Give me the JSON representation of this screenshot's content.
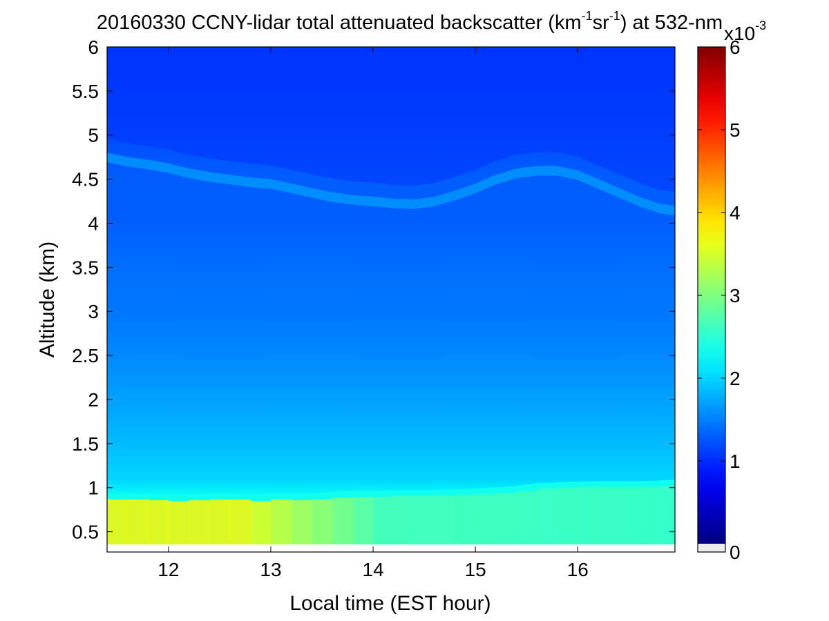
{
  "chart_data": {
    "type": "heatmap",
    "title_parts": {
      "main": "20160330 CCNY-lidar total attenuated backscatter (km",
      "sup1": "-1",
      "mid": "sr",
      "sup2": "-1",
      "tail": ") at 532-nm"
    },
    "xlabel": "Local time (EST hour)",
    "ylabel": "Altitude (km)",
    "xlim": [
      11.4,
      16.95
    ],
    "ylim": [
      0.27,
      6.0
    ],
    "x_ticks": [
      12,
      13,
      14,
      15,
      16
    ],
    "x_tick_labels": [
      "12",
      "13",
      "14",
      "15",
      "16"
    ],
    "y_ticks": [
      0.5,
      1,
      1.5,
      2,
      2.5,
      3,
      3.5,
      4,
      4.5,
      5,
      5.5,
      6
    ],
    "y_tick_labels": [
      "0.5",
      "1",
      "1.5",
      "2",
      "2.5",
      "3",
      "3.5",
      "4",
      "4.5",
      "5",
      "5.5",
      "6"
    ],
    "data_floor_km": 0.3,
    "colorbar": {
      "colormap": "jet",
      "clim": [
        0,
        6
      ],
      "ticks": [
        0,
        1,
        2,
        3,
        4,
        5,
        6
      ],
      "tick_labels": [
        "0",
        "1",
        "2",
        "3",
        "4",
        "5",
        "6"
      ],
      "multiplier_base": "x10",
      "multiplier_exp": "-3"
    },
    "time_samples": [
      11.4,
      11.6,
      11.8,
      12.0,
      12.2,
      12.4,
      12.6,
      12.8,
      13.0,
      13.2,
      13.4,
      13.6,
      13.8,
      14.0,
      14.2,
      14.4,
      14.6,
      14.8,
      15.0,
      15.2,
      15.4,
      15.6,
      15.8,
      16.0,
      16.2,
      16.4,
      16.6,
      16.8,
      16.95
    ],
    "boundary_layer_top_km": [
      0.93,
      0.93,
      0.92,
      0.91,
      0.92,
      0.93,
      0.93,
      0.91,
      0.93,
      0.92,
      0.93,
      0.95,
      0.96,
      0.96,
      0.97,
      0.97,
      0.97,
      0.98,
      0.99,
      1.0,
      1.02,
      1.05,
      1.06,
      1.07,
      1.07,
      1.07,
      1.07,
      1.08,
      1.09
    ],
    "aerosol_layer_top_km": [
      4.8,
      4.75,
      4.72,
      4.68,
      4.62,
      4.58,
      4.55,
      4.52,
      4.5,
      4.45,
      4.4,
      4.35,
      4.32,
      4.3,
      4.28,
      4.27,
      4.3,
      4.37,
      4.45,
      4.55,
      4.62,
      4.65,
      4.65,
      4.6,
      4.5,
      4.4,
      4.3,
      4.22,
      4.2
    ],
    "backscatter_profile": {
      "altitude_km": [
        0.3,
        0.5,
        0.7,
        0.9,
        1.1,
        1.5,
        2.0,
        2.5,
        3.0,
        3.5,
        4.0,
        4.5,
        5.0,
        5.5,
        6.0
      ],
      "early_11h5": [
        3.9,
        3.8,
        3.9,
        3.6,
        2.4,
        2.1,
        1.95,
        1.8,
        1.7,
        1.6,
        1.55,
        1.6,
        1.45,
        1.4,
        1.35
      ],
      "midday_14h": [
        2.6,
        2.7,
        2.6,
        2.3,
        2.0,
        1.85,
        1.7,
        1.55,
        1.45,
        1.4,
        1.3,
        1.3,
        1.2,
        1.1,
        1.05
      ],
      "late_16h5": [
        2.5,
        2.6,
        2.5,
        2.4,
        2.2,
        1.75,
        1.6,
        1.5,
        1.4,
        1.35,
        1.25,
        1.25,
        1.15,
        1.05,
        1.0
      ]
    }
  }
}
